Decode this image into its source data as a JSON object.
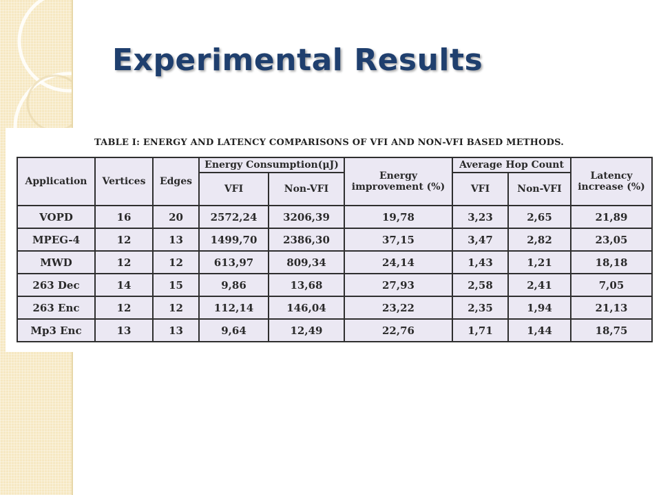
{
  "slide": {
    "title": "Experimental Results"
  },
  "table": {
    "caption": "TABLE I: ENERGY AND LATENCY COMPARISONS OF VFI AND NON-VFI BASED METHODS.",
    "headers": {
      "application": "Application",
      "vertices": "Vertices",
      "edges": "Edges",
      "energy_group": "Energy Consumption(μJ)",
      "energy_vfi": "VFI",
      "energy_nonvfi": "Non-VFI",
      "energy_improvement": "Energy improvement (%)",
      "hop_group": "Average Hop Count",
      "hop_vfi": "VFI",
      "hop_nonvfi": "Non-VFI",
      "latency_increase": "Latency increase (%)"
    },
    "rows": [
      [
        "VOPD",
        "16",
        "20",
        "2572,24",
        "3206,39",
        "19,78",
        "3,23",
        "2,65",
        "21,89"
      ],
      [
        "MPEG-4",
        "12",
        "13",
        "1499,70",
        "2386,30",
        "37,15",
        "3,47",
        "2,82",
        "23,05"
      ],
      [
        "MWD",
        "12",
        "12",
        "613,97",
        "809,34",
        "24,14",
        "1,43",
        "1,21",
        "18,18"
      ],
      [
        "263 Dec",
        "14",
        "15",
        "9,86",
        "13,68",
        "27,93",
        "2,58",
        "2,41",
        "7,05"
      ],
      [
        "263 Enc",
        "12",
        "12",
        "112,14",
        "146,04",
        "23,22",
        "2,35",
        "1,94",
        "21,13"
      ],
      [
        "Mp3 Enc",
        "13",
        "13",
        "9,64",
        "12,49",
        "22,76",
        "1,71",
        "1,44",
        "18,75"
      ]
    ]
  }
}
